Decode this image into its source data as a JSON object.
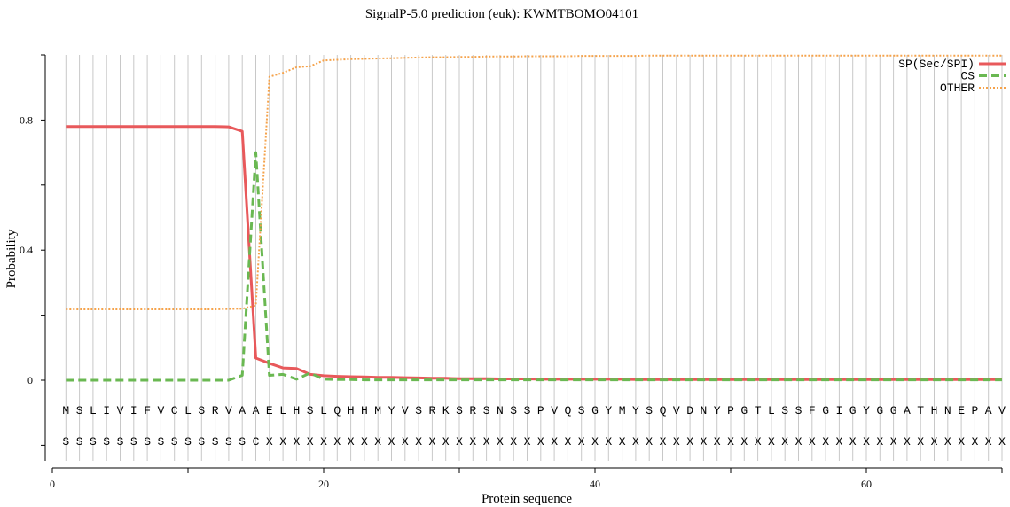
{
  "chart_data": {
    "type": "line",
    "title": "SignalP-5.0 prediction (euk):  KWMTBOMO04101",
    "xlabel": "Protein sequence",
    "ylabel": "Probability",
    "xlim": [
      0,
      70
    ],
    "ylim": [
      -0.25,
      1.0
    ],
    "x_ticks": [
      0,
      20,
      40,
      60
    ],
    "y_ticks": [
      0,
      0.4,
      0.8
    ],
    "y_tick_labels": [
      "0",
      "0.4",
      "0.8"
    ],
    "grid": "vertical",
    "legend_position": "top-right",
    "sequence": [
      "M",
      "S",
      "L",
      "I",
      "V",
      "I",
      "F",
      "V",
      "C",
      "L",
      "S",
      "R",
      "V",
      "A",
      "A",
      "E",
      "L",
      "H",
      "S",
      "L",
      "Q",
      "H",
      "H",
      "M",
      "Y",
      "V",
      "S",
      "R",
      "K",
      "S",
      "R",
      "S",
      "N",
      "S",
      "S",
      "P",
      "V",
      "Q",
      "S",
      "G",
      "Y",
      "M",
      "Y",
      "S",
      "Q",
      "V",
      "D",
      "N",
      "Y",
      "P",
      "G",
      "T",
      "L",
      "S",
      "S",
      "F",
      "G",
      "I",
      "G",
      "Y",
      "G",
      "G",
      "A",
      "T",
      "H",
      "N",
      "E",
      "P",
      "A",
      "V"
    ],
    "labels": [
      "S",
      "S",
      "S",
      "S",
      "S",
      "S",
      "S",
      "S",
      "S",
      "S",
      "S",
      "S",
      "S",
      "S",
      "C",
      "X",
      "X",
      "X",
      "X",
      "X",
      "X",
      "X",
      "X",
      "X",
      "X",
      "X",
      "X",
      "X",
      "X",
      "X",
      "X",
      "X",
      "X",
      "X",
      "X",
      "X",
      "X",
      "X",
      "X",
      "X",
      "X",
      "X",
      "X",
      "X",
      "X",
      "X",
      "X",
      "X",
      "X",
      "X",
      "X",
      "X",
      "X",
      "X",
      "X",
      "X",
      "X",
      "X",
      "X",
      "X",
      "X",
      "X",
      "X",
      "X",
      "X",
      "X",
      "X",
      "X",
      "X",
      "X"
    ],
    "x": [
      1,
      2,
      3,
      4,
      5,
      6,
      7,
      8,
      9,
      10,
      11,
      12,
      13,
      14,
      15,
      16,
      17,
      18,
      19,
      20,
      21,
      22,
      23,
      24,
      25,
      26,
      27,
      28,
      29,
      30,
      31,
      32,
      33,
      34,
      35,
      36,
      37,
      38,
      39,
      40,
      41,
      42,
      43,
      44,
      45,
      46,
      47,
      48,
      49,
      50,
      51,
      52,
      53,
      54,
      55,
      56,
      57,
      58,
      59,
      60,
      61,
      62,
      63,
      64,
      65,
      66,
      67,
      68,
      69,
      70
    ],
    "series": [
      {
        "name": "SP(Sec/SPI)",
        "color": "#e8595b",
        "style": "solid",
        "values": [
          0.78,
          0.78,
          0.78,
          0.78,
          0.78,
          0.78,
          0.78,
          0.78,
          0.78,
          0.78,
          0.78,
          0.78,
          0.779,
          0.765,
          0.068,
          0.052,
          0.038,
          0.036,
          0.018,
          0.014,
          0.012,
          0.011,
          0.01,
          0.009,
          0.009,
          0.008,
          0.007,
          0.006,
          0.006,
          0.005,
          0.005,
          0.005,
          0.004,
          0.004,
          0.004,
          0.003,
          0.003,
          0.003,
          0.003,
          0.003,
          0.003,
          0.003,
          0.002,
          0.002,
          0.002,
          0.002,
          0.002,
          0.002,
          0.002,
          0.002,
          0.002,
          0.002,
          0.002,
          0.002,
          0.002,
          0.002,
          0.002,
          0.002,
          0.002,
          0.002,
          0.002,
          0.002,
          0.002,
          0.002,
          0.002,
          0.002,
          0.002,
          0.002,
          0.002,
          0.002
        ]
      },
      {
        "name": "CS",
        "color": "#6ab852",
        "style": "dashed",
        "values": [
          0,
          0,
          0,
          0,
          0,
          0,
          0,
          0,
          0,
          0,
          0,
          0,
          0,
          0.015,
          0.7,
          0.015,
          0.018,
          0.003,
          0.022,
          0.003,
          0.002,
          0.002,
          0.001,
          0.001,
          0.001,
          0.001,
          0.001,
          0.001,
          0.001,
          0.001,
          0.001,
          0.001,
          0.001,
          0.001,
          0.001,
          0.001,
          0.001,
          0.001,
          0.001,
          0.001,
          0.001,
          0.001,
          0.001,
          0.001,
          0.001,
          0.001,
          0.001,
          0.001,
          0.001,
          0.001,
          0.001,
          0.001,
          0.001,
          0.001,
          0.001,
          0.001,
          0.001,
          0.001,
          0.001,
          0.001,
          0.001,
          0.001,
          0.001,
          0.001,
          0.001,
          0.001,
          0.001,
          0.001,
          0.001,
          0.001
        ]
      },
      {
        "name": "OTHER",
        "color": "#f5a24a",
        "style": "dotted",
        "values": [
          0.218,
          0.218,
          0.218,
          0.218,
          0.218,
          0.218,
          0.218,
          0.218,
          0.218,
          0.218,
          0.218,
          0.218,
          0.219,
          0.22,
          0.23,
          0.933,
          0.945,
          0.962,
          0.965,
          0.983,
          0.985,
          0.987,
          0.988,
          0.989,
          0.99,
          0.991,
          0.992,
          0.993,
          0.993,
          0.994,
          0.994,
          0.995,
          0.995,
          0.995,
          0.996,
          0.996,
          0.996,
          0.996,
          0.997,
          0.997,
          0.997,
          0.997,
          0.997,
          0.998,
          0.998,
          0.998,
          0.998,
          0.998,
          0.998,
          0.998,
          0.998,
          0.998,
          0.998,
          0.998,
          0.998,
          0.998,
          0.998,
          0.998,
          0.998,
          0.998,
          0.998,
          0.998,
          0.998,
          0.998,
          0.998,
          0.998,
          0.998,
          0.998,
          0.998,
          0.998
        ]
      }
    ]
  }
}
